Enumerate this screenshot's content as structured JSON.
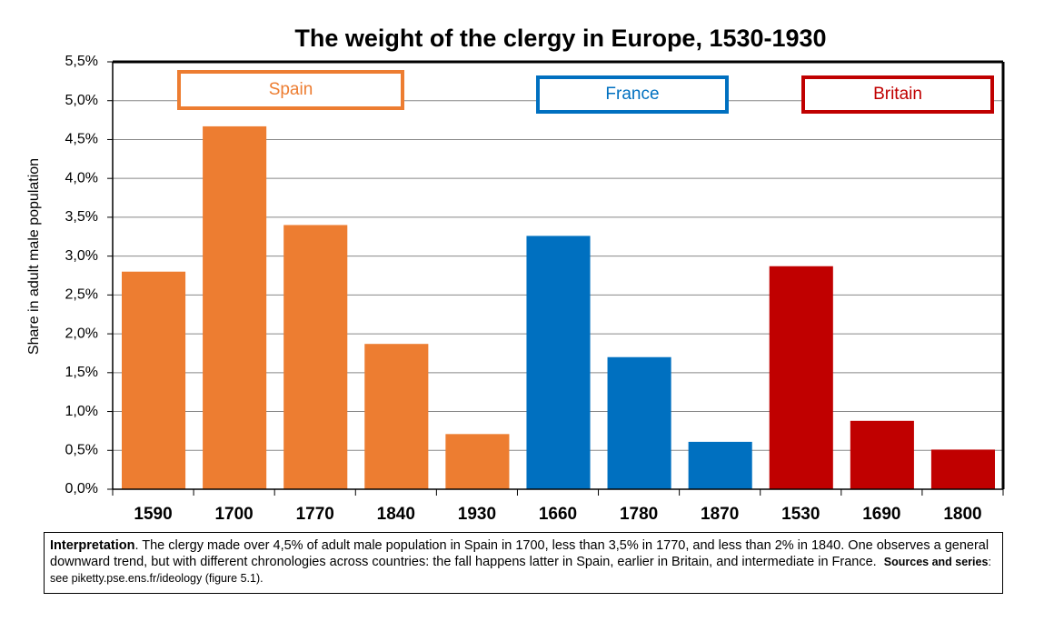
{
  "chart_data": {
    "type": "bar",
    "title": "The weight of the clergy in Europe, 1530-1930",
    "y_label": "Share in adult male population",
    "categories": [
      "1590",
      "1700",
      "1770",
      "1840",
      "1930",
      "1660",
      "1780",
      "1870",
      "1530",
      "1690",
      "1800"
    ],
    "series": [
      {
        "name": "Spain",
        "color": "#ED7D31",
        "values": [
          2.8,
          4.67,
          3.4,
          1.87,
          0.71,
          null,
          null,
          null,
          null,
          null,
          null
        ]
      },
      {
        "name": "France",
        "color": "#0070C0",
        "values": [
          null,
          null,
          null,
          null,
          null,
          3.26,
          1.7,
          0.61,
          null,
          null,
          null
        ]
      },
      {
        "name": "Britain",
        "color": "#C00000",
        "values": [
          null,
          null,
          null,
          null,
          null,
          null,
          null,
          null,
          2.87,
          0.88,
          0.51
        ]
      }
    ],
    "ylim": [
      0,
      5.5
    ],
    "yticks": [
      {
        "value": 0,
        "label": "0,0%"
      },
      {
        "value": 0.5,
        "label": "0,5%"
      },
      {
        "value": 1,
        "label": "1,0%"
      },
      {
        "value": 1.5,
        "label": "1,5%"
      },
      {
        "value": 2,
        "label": "2,0%"
      },
      {
        "value": 2.5,
        "label": "2,5%"
      },
      {
        "value": 3,
        "label": "3,0%"
      },
      {
        "value": 3.5,
        "label": "3,5%"
      },
      {
        "value": 4,
        "label": "4,0%"
      },
      {
        "value": 4.5,
        "label": "4,5%"
      },
      {
        "value": 5,
        "label": "5,0%"
      },
      {
        "value": 5.5,
        "label": "5,5%"
      }
    ],
    "grid": true,
    "note": {
      "lead": "Interpretation",
      "text": ". The clergy made over 4,5% of adult male population in Spain in 1700, less than 3,5% in 1770, and less than 2% in 1840. One observes a general downward trend, but with different chronologies across countries: the fall happens latter in Spain, earlier in Britain, and intermediate in France.",
      "sources_lead": "Sources and series",
      "sources_text": ": see piketty.pse.ens.fr/ideology (figure 5.1)."
    }
  }
}
